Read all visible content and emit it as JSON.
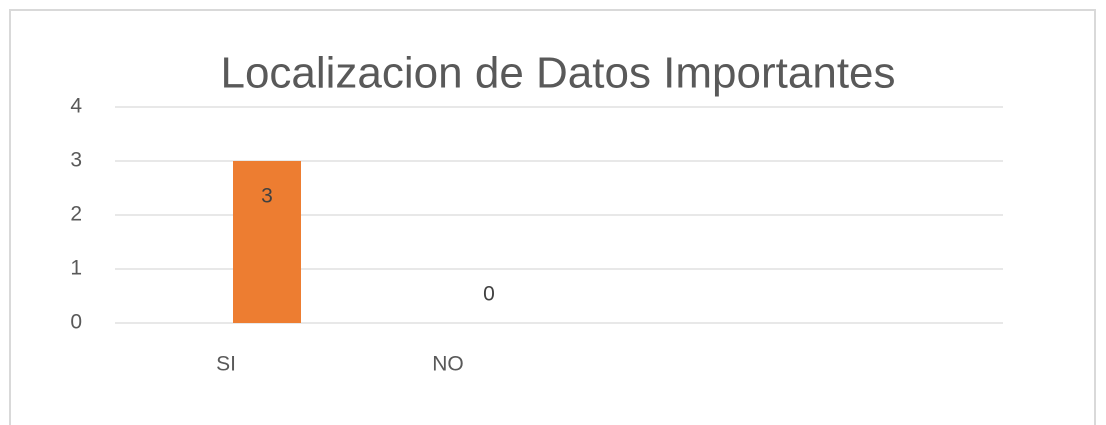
{
  "chart_data": {
    "type": "bar",
    "title": "Localizacion de Datos Importantes",
    "categories": [
      "SI",
      "NO"
    ],
    "values": [
      3,
      0
    ],
    "color": "#ed7d31",
    "ylim": [
      0,
      4
    ],
    "yticks": [
      0,
      1,
      2,
      3,
      4
    ],
    "grid": true,
    "data_labels": true
  }
}
